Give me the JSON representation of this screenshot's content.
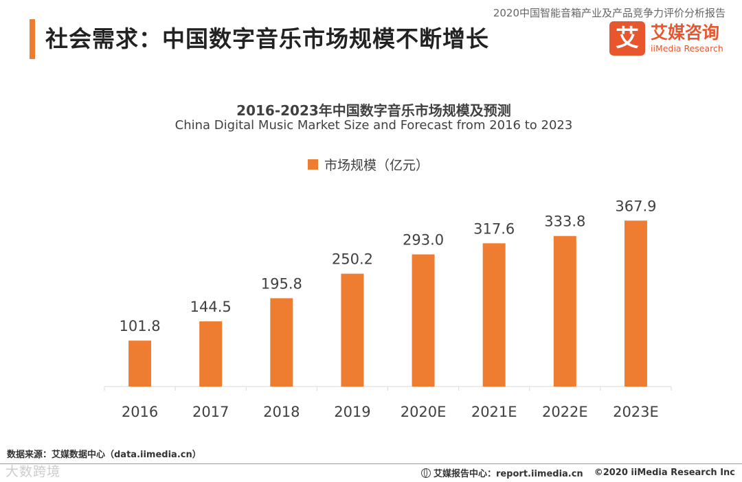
{
  "header": {
    "report_title": "2020中国智能音箱产业及产品竞争力评价分析报告",
    "page_title": "社会需求：中国数字音乐市场规模不断增长"
  },
  "logo": {
    "mark": "艾",
    "name": "艾媒咨询",
    "subtitle": "iiMedia Research"
  },
  "colors": {
    "accent": "#ee7d31",
    "brand": "#e8562d"
  },
  "chart_data": {
    "type": "bar",
    "title": "2016-2023年中国数字音乐市场规模及预测",
    "subtitle": "China Digital Music Market Size and Forecast from 2016 to 2023",
    "categories": [
      "2016",
      "2017",
      "2018",
      "2019",
      "2020E",
      "2021E",
      "2022E",
      "2023E"
    ],
    "series": [
      {
        "name": "市场规模（亿元）",
        "values": [
          101.8,
          144.5,
          195.8,
          250.2,
          293.0,
          317.6,
          333.8,
          367.9
        ],
        "labels": [
          "101.8",
          "144.5",
          "195.8",
          "250.2",
          "293.0",
          "317.6",
          "333.8",
          "367.9"
        ]
      }
    ],
    "ylim": [
      0,
      450
    ],
    "grid": false,
    "legend": "top-center"
  },
  "footer": {
    "source": "数据来源：艾媒数据中心（data.iimedia.cn）",
    "report_center": "艾媒报告中心：report.iimedia.cn",
    "copyright": "©2020  iiMedia Research  Inc",
    "watermark": "大数跨境"
  }
}
